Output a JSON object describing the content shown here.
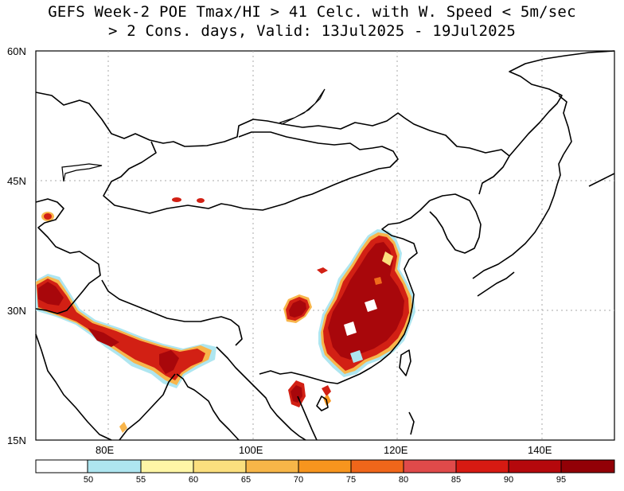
{
  "title": {
    "line1": "GEFS Week-2 POE Tmax/HI > 41 Celc. with W. Speed < 5m/sec",
    "line2": "> 2 Cons. days, Valid: 13Jul2025 - 19Jul2025"
  },
  "axes": {
    "lat_labels": [
      "60N",
      "45N",
      "30N",
      "15N"
    ],
    "lon_labels": [
      "80E",
      "100E",
      "120E",
      "140E"
    ],
    "lon_range": [
      70,
      150
    ],
    "lat_range": [
      15,
      60
    ]
  },
  "colorbar": {
    "ticks": [
      "50",
      "55",
      "60",
      "65",
      "70",
      "75",
      "80",
      "85",
      "90",
      "95"
    ],
    "colors": [
      "#ffffff",
      "#aee6f0",
      "#fff6a6",
      "#fbdf7e",
      "#f7b648",
      "#f7951e",
      "#f0661a",
      "#e04a4a",
      "#d71a12",
      "#b5080c",
      "#920006"
    ]
  },
  "map_colors": {
    "hot_core": "#a8070b",
    "hot": "#d22014",
    "mid": "#ef6b1c",
    "warm": "#f8b54b",
    "edge": "#aee6f0"
  }
}
